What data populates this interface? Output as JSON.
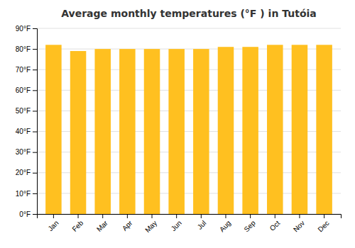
{
  "chart_data": {
    "type": "bar",
    "title": "Average monthly temperatures (°F ) in Tutóia",
    "categories": [
      "Jan",
      "Feb",
      "Mar",
      "Apr",
      "May",
      "Jun",
      "Jul",
      "Aug",
      "Sep",
      "Oct",
      "Nov",
      "Dec"
    ],
    "values": [
      82,
      79,
      80,
      80,
      80,
      80,
      80,
      81,
      81,
      82,
      82,
      82
    ],
    "color": "#FFC020",
    "ylim": [
      0,
      90
    ],
    "yticks": [
      {
        "value": 0,
        "label": "0°F"
      },
      {
        "value": 10,
        "label": "10°F"
      },
      {
        "value": 20,
        "label": "20°F"
      },
      {
        "value": 30,
        "label": "30°F"
      },
      {
        "value": 40,
        "label": "40°F"
      },
      {
        "value": 50,
        "label": "50°F"
      },
      {
        "value": 60,
        "label": "60°F"
      },
      {
        "value": 70,
        "label": "70°F"
      },
      {
        "value": 80,
        "label": "80°F"
      },
      {
        "value": 90,
        "label": "90°F"
      }
    ],
    "grid": true
  }
}
